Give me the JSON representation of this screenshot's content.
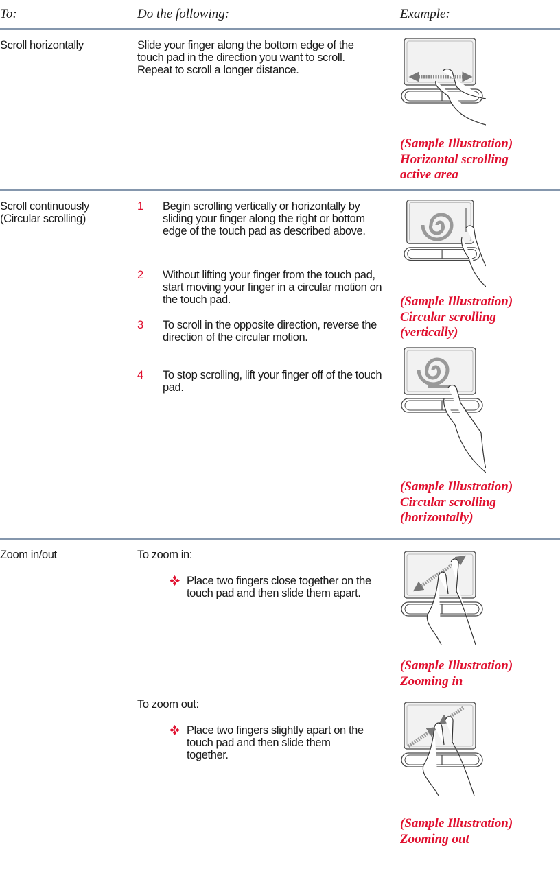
{
  "header": {
    "to": "To:",
    "do": "Do the following:",
    "example": "Example:"
  },
  "rows": [
    {
      "action": [
        "Scroll horizontally"
      ],
      "description": "Slide your finger along the bottom edge of the touch pad in the direction you want to scroll. Repeat to scroll a longer distance.",
      "examples": [
        {
          "caption": [
            "(Sample Illustration)",
            "Horizontal scrolling",
            "active area"
          ]
        }
      ]
    },
    {
      "action": [
        "Scroll continuously",
        "(Circular scrolling)"
      ],
      "steps": [
        {
          "number": "1",
          "text": "Begin scrolling vertically or horizontally by sliding your finger along the right or bottom edge of the touch pad as described above."
        },
        {
          "number": "2",
          "text": "Without lifting your finger from the touch pad, start moving your finger in a circular motion on the touch pad."
        },
        {
          "number": "3",
          "text": "To scroll in the opposite direction, reverse the direction of the circular motion."
        },
        {
          "number": "4",
          "text": "To stop scrolling, lift your finger off of the touch pad."
        }
      ],
      "examples": [
        {
          "caption": [
            "(Sample Illustration)",
            "Circular scrolling",
            "(vertically)"
          ]
        },
        {
          "caption": [
            "(Sample Illustration)",
            "Circular scrolling",
            "(horizontally)"
          ]
        }
      ]
    },
    {
      "action": [
        "Zoom in/out"
      ],
      "sections": [
        {
          "heading": "To zoom in:",
          "bullet": "Place two fingers close together on the touch pad and then slide them apart."
        },
        {
          "heading": "To zoom out:",
          "bullet": "Place two fingers slightly apart on the touch pad and then slide them together."
        }
      ],
      "examples": [
        {
          "caption": [
            "(Sample Illustration)",
            "Zooming in"
          ]
        },
        {
          "caption": [
            "(Sample Illustration)",
            "Zooming out"
          ]
        }
      ]
    }
  ]
}
